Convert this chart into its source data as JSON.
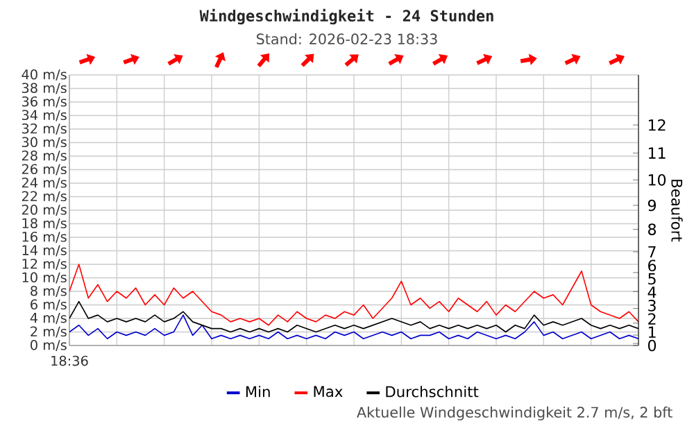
{
  "chart_data": {
    "type": "line",
    "title": "Windgeschwindigkeit - 24 Stunden",
    "subtitle": "Stand: 2026-02-23 18:33",
    "y2label": "Beaufort",
    "annotations": [
      "18:36",
      "Aktuelle Windgeschwindigkeit 2.7 m/s, 2 bft",
      "0",
      "1",
      "2",
      "3",
      "4",
      "5",
      "6",
      "7",
      "8",
      "9",
      "10",
      "11",
      "12"
    ],
    "categories": [
      null,
      null,
      null,
      null,
      null,
      null,
      null,
      null,
      null,
      null,
      null,
      null,
      null,
      null,
      null,
      null,
      null,
      null,
      null,
      null,
      null,
      null,
      null,
      null,
      null,
      null,
      null,
      null,
      null,
      null,
      null,
      null,
      null,
      null,
      null,
      null,
      null,
      null,
      null,
      null,
      null,
      null,
      null,
      null,
      null,
      null,
      null,
      null,
      null,
      null,
      null,
      null,
      null,
      null,
      null,
      null,
      null,
      null,
      null,
      null,
      null
    ],
    "series": [
      {
        "name": "Min",
        "color": "#0000cc",
        "values": [
          2,
          3,
          1.5,
          2.5,
          1,
          2,
          1.5,
          2,
          1.5,
          2.5,
          1.5,
          2,
          4.5,
          1.5,
          3,
          1,
          1.5,
          1,
          1.5,
          1,
          1.5,
          1,
          2,
          1,
          1.5,
          1,
          1.5,
          1,
          2,
          1.5,
          2,
          1,
          1.5,
          2,
          1.5,
          2,
          1,
          1.5,
          1.5,
          2,
          1,
          1.5,
          1,
          2,
          1.5,
          1,
          1.5,
          1,
          2,
          3.5,
          1.5,
          2,
          1,
          1.5,
          2,
          1,
          1.5,
          2,
          1,
          1.5,
          1
        ]
      },
      {
        "name": "Max",
        "color": "#ff0000",
        "values": [
          8,
          12,
          7,
          9,
          6.5,
          8,
          7,
          8.5,
          6,
          7.5,
          6,
          8.5,
          7,
          8,
          6.5,
          5,
          4.5,
          3.5,
          4,
          3.5,
          4,
          3,
          4.5,
          3.5,
          5,
          4,
          3.5,
          4.5,
          4,
          5,
          4.5,
          6,
          4,
          5.5,
          7,
          9.5,
          6,
          7,
          5.5,
          6.5,
          5,
          7,
          6,
          5,
          6.5,
          4.5,
          6,
          5,
          6.5,
          8,
          7,
          7.5,
          6,
          8.5,
          11,
          6,
          5,
          4.5,
          4,
          5,
          3.5
        ]
      },
      {
        "name": "Durchschnitt",
        "color": "#000000",
        "values": [
          4,
          6.5,
          4,
          4.5,
          3.5,
          4,
          3.5,
          4,
          3.5,
          4.5,
          3.5,
          4,
          5,
          3.5,
          3,
          2.5,
          2.5,
          2,
          2.5,
          2,
          2.5,
          2,
          2.5,
          2,
          3,
          2.5,
          2,
          2.5,
          3,
          2.5,
          3,
          2.5,
          3,
          3.5,
          4,
          3.5,
          3,
          3.5,
          2.5,
          3,
          2.5,
          3,
          2.5,
          3,
          2.5,
          3,
          2,
          3,
          2.5,
          4.5,
          3,
          3.5,
          3,
          3.5,
          4,
          3,
          2.5,
          3,
          2.5,
          3,
          2.5
        ]
      }
    ],
    "ylim": [
      0,
      40
    ],
    "yticks": [
      {
        "value": 0,
        "label": "0 m/s"
      },
      {
        "value": 2,
        "label": "2 m/s"
      },
      {
        "value": 4,
        "label": "4 m/s"
      },
      {
        "value": 6,
        "label": "6 m/s"
      },
      {
        "value": 8,
        "label": "8 m/s"
      },
      {
        "value": 10,
        "label": "10 m/s"
      },
      {
        "value": 12,
        "label": "12 m/s"
      },
      {
        "value": 14,
        "label": "14 m/s"
      },
      {
        "value": 16,
        "label": "16 m/s"
      },
      {
        "value": 18,
        "label": "18 m/s"
      },
      {
        "value": 20,
        "label": "20 m/s"
      },
      {
        "value": 22,
        "label": "22 m/s"
      },
      {
        "value": 24,
        "label": "24 m/s"
      },
      {
        "value": 26,
        "label": "26 m/s"
      },
      {
        "value": 28,
        "label": "28 m/s"
      },
      {
        "value": 30,
        "label": "30 m/s"
      },
      {
        "value": 32,
        "label": "32 m/s"
      },
      {
        "value": 34,
        "label": "34 m/s"
      },
      {
        "value": 36,
        "label": "36 m/s"
      },
      {
        "value": 38,
        "label": "38 m/s"
      },
      {
        "value": 40,
        "label": "40 m/s"
      }
    ],
    "grid": true,
    "legend": "bottom",
    "marker": "none",
    "line_style": "solid"
  }
}
